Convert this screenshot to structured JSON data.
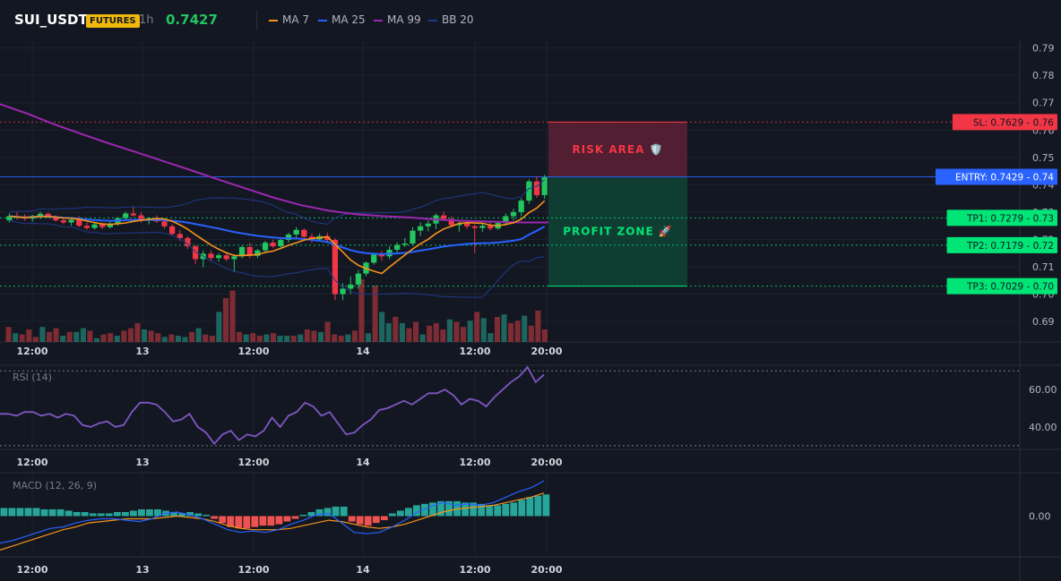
{
  "header": {
    "symbol": "SUI_USDT",
    "badge": "FUTURES",
    "timeframe": "1h",
    "last_price": "0.7427",
    "legend": [
      {
        "label": "MA 7",
        "color": "#f7931a"
      },
      {
        "label": "MA 25",
        "color": "#2962ff"
      },
      {
        "label": "MA 99",
        "color": "#9c27b0"
      },
      {
        "label": "BB 20",
        "color": "#1e3a8a"
      }
    ]
  },
  "chart_data": [
    {
      "type": "candlestick",
      "panel": "price",
      "x_ticks": [
        "12:00",
        "13",
        "12:00",
        "14",
        "12:00",
        "20:00"
      ],
      "y_ticks": [
        0.69,
        0.7,
        0.71,
        0.72,
        0.73,
        0.74,
        0.75,
        0.76,
        0.77,
        0.78,
        0.79
      ],
      "ylim": [
        0.6825,
        0.7925
      ],
      "candles": [
        [
          0.727,
          0.7295,
          0.7262,
          0.7285
        ],
        [
          0.7285,
          0.73,
          0.7272,
          0.728
        ],
        [
          0.728,
          0.7292,
          0.7268,
          0.7276
        ],
        [
          0.7276,
          0.729,
          0.7265,
          0.7286
        ],
        [
          0.7286,
          0.7302,
          0.7275,
          0.7294
        ],
        [
          0.7294,
          0.7298,
          0.7278,
          0.7282
        ],
        [
          0.7282,
          0.7288,
          0.7265,
          0.727
        ],
        [
          0.727,
          0.7282,
          0.7255,
          0.7262
        ],
        [
          0.7262,
          0.7278,
          0.725,
          0.7272
        ],
        [
          0.7272,
          0.7285,
          0.7245,
          0.725
        ],
        [
          0.725,
          0.7262,
          0.7235,
          0.7242
        ],
        [
          0.7242,
          0.726,
          0.7236,
          0.7255
        ],
        [
          0.7255,
          0.7262,
          0.7238,
          0.7245
        ],
        [
          0.7245,
          0.7265,
          0.724,
          0.7258
        ],
        [
          0.7258,
          0.7282,
          0.725,
          0.7278
        ],
        [
          0.7278,
          0.7302,
          0.727,
          0.7295
        ],
        [
          0.7295,
          0.7318,
          0.7282,
          0.7288
        ],
        [
          0.7288,
          0.73,
          0.7262,
          0.727
        ],
        [
          0.727,
          0.7282,
          0.7255,
          0.7278
        ],
        [
          0.7278,
          0.7288,
          0.726,
          0.7266
        ],
        [
          0.7266,
          0.7276,
          0.724,
          0.7248
        ],
        [
          0.7248,
          0.7255,
          0.7215,
          0.722
        ],
        [
          0.722,
          0.7235,
          0.7195,
          0.7205
        ],
        [
          0.7205,
          0.7212,
          0.7165,
          0.7175
        ],
        [
          0.7175,
          0.718,
          0.711,
          0.7128
        ],
        [
          0.7128,
          0.716,
          0.7098,
          0.7148
        ],
        [
          0.7148,
          0.716,
          0.712,
          0.7132
        ],
        [
          0.7132,
          0.715,
          0.7118,
          0.7142
        ],
        [
          0.7142,
          0.715,
          0.712,
          0.7128
        ],
        [
          0.7128,
          0.7145,
          0.708,
          0.7138
        ],
        [
          0.7138,
          0.7178,
          0.713,
          0.7172
        ],
        [
          0.7172,
          0.7188,
          0.7132,
          0.714
        ],
        [
          0.714,
          0.7165,
          0.7132,
          0.716
        ],
        [
          0.716,
          0.7195,
          0.7155,
          0.7188
        ],
        [
          0.7188,
          0.7198,
          0.7168,
          0.7175
        ],
        [
          0.7175,
          0.7202,
          0.717,
          0.7198
        ],
        [
          0.7198,
          0.7225,
          0.7188,
          0.7218
        ],
        [
          0.7218,
          0.7245,
          0.7205,
          0.7235
        ],
        [
          0.7235,
          0.724,
          0.72,
          0.721
        ],
        [
          0.721,
          0.7222,
          0.7188,
          0.72
        ],
        [
          0.72,
          0.7222,
          0.7195,
          0.7212
        ],
        [
          0.7212,
          0.7225,
          0.7188,
          0.7198
        ],
        [
          0.7198,
          0.7205,
          0.6978,
          0.7
        ],
        [
          0.7,
          0.704,
          0.6978,
          0.702
        ],
        [
          0.702,
          0.7065,
          0.7,
          0.7035
        ],
        [
          0.7035,
          0.7088,
          0.702,
          0.7075
        ],
        [
          0.7075,
          0.712,
          0.7065,
          0.7115
        ],
        [
          0.7115,
          0.7152,
          0.7108,
          0.7145
        ],
        [
          0.7145,
          0.7158,
          0.7122,
          0.7138
        ],
        [
          0.7138,
          0.7175,
          0.7128,
          0.7162
        ],
        [
          0.7162,
          0.719,
          0.715,
          0.718
        ],
        [
          0.718,
          0.7205,
          0.7172,
          0.7185
        ],
        [
          0.7185,
          0.7245,
          0.718,
          0.7232
        ],
        [
          0.7232,
          0.7262,
          0.7212,
          0.7248
        ],
        [
          0.7248,
          0.727,
          0.723,
          0.7258
        ],
        [
          0.7258,
          0.7295,
          0.7238,
          0.7288
        ],
        [
          0.7288,
          0.7302,
          0.7268,
          0.7275
        ],
        [
          0.7275,
          0.7285,
          0.7245,
          0.7252
        ],
        [
          0.7252,
          0.7265,
          0.7228,
          0.7258
        ],
        [
          0.7258,
          0.727,
          0.7238,
          0.7248
        ],
        [
          0.7248,
          0.7255,
          0.715,
          0.7242
        ],
        [
          0.7242,
          0.7258,
          0.7228,
          0.725
        ],
        [
          0.725,
          0.7262,
          0.7232,
          0.724
        ],
        [
          0.724,
          0.7265,
          0.7235,
          0.726
        ],
        [
          0.726,
          0.7295,
          0.725,
          0.7285
        ],
        [
          0.7285,
          0.7312,
          0.727,
          0.73
        ],
        [
          0.73,
          0.7352,
          0.7285,
          0.7342
        ],
        [
          0.7342,
          0.742,
          0.733,
          0.7412
        ],
        [
          0.7412,
          0.7432,
          0.7352,
          0.7362
        ],
        [
          0.7362,
          0.7436,
          0.7348,
          0.7427
        ]
      ],
      "volume": [
        24,
        14,
        12,
        20,
        8,
        24,
        16,
        22,
        10,
        16,
        16,
        22,
        18,
        6,
        12,
        14,
        10,
        18,
        22,
        30,
        20,
        18,
        14,
        8,
        12,
        10,
        8,
        16,
        22,
        12,
        10,
        48,
        70,
        82,
        16,
        12,
        14,
        10,
        12,
        14,
        10,
        10,
        10,
        12,
        20,
        18,
        16,
        32,
        12,
        10,
        12,
        18,
        100,
        14,
        90,
        48,
        30,
        40,
        30,
        22,
        32,
        12,
        26,
        30,
        20,
        36,
        32,
        24,
        34,
        48,
        38,
        14,
        40,
        44,
        30,
        34,
        42,
        26,
        50,
        20
      ],
      "overlays": [
        {
          "name": "MA 7",
          "color": "#f7931a"
        },
        {
          "name": "MA 25",
          "color": "#2962ff"
        },
        {
          "name": "MA 99",
          "color": "#9c27b0",
          "values": [
            0.7695,
            0.766,
            0.762,
            0.7585,
            0.755,
            0.7518,
            0.7485,
            0.7452,
            0.7418,
            0.7385,
            0.7352,
            0.7325,
            0.7305,
            0.7292,
            0.7285,
            0.728,
            0.7272,
            0.7268,
            0.7265,
            0.7262,
            0.7262
          ]
        },
        {
          "name": "BB 20",
          "color": "#1e3a8a"
        }
      ],
      "levels": [
        {
          "label": "SL: 0.7629",
          "value": 0.7629,
          "price_label": "0.76",
          "color": "#f23645"
        },
        {
          "label": "ENTRY: 0.7429",
          "value": 0.7429,
          "price_label": "0.74",
          "color": "#2962ff"
        },
        {
          "label": "TP1: 0.7279",
          "value": 0.7279,
          "price_label": "0.73",
          "color": "#00e676"
        },
        {
          "label": "TP2: 0.7179",
          "value": 0.7179,
          "price_label": "0.72",
          "color": "#00e676"
        },
        {
          "label": "TP3: 0.7029",
          "value": 0.7029,
          "price_label": "0.70",
          "color": "#00e676"
        }
      ],
      "zones": [
        {
          "label": "RISK AREA 🛡️",
          "from": 0.7429,
          "to": 0.7629,
          "color": "#f23645"
        },
        {
          "label": "PROFIT ZONE 🚀",
          "from": 0.7029,
          "to": 0.7429,
          "color": "#00e676"
        }
      ]
    },
    {
      "type": "line",
      "panel": "rsi",
      "title": "RSI (14)",
      "y_ticks": [
        40.0,
        60.0
      ],
      "ylim": [
        28,
        73
      ],
      "guides": [
        70,
        30
      ],
      "values": [
        47,
        47,
        46,
        48,
        48,
        46,
        47,
        45,
        47,
        46,
        41,
        40,
        42,
        43,
        40,
        41,
        48,
        53,
        53,
        52,
        48,
        43,
        44,
        47,
        40,
        37,
        31,
        36,
        38,
        33,
        36,
        35,
        38,
        45,
        40,
        46,
        48,
        53,
        51,
        46,
        48,
        42,
        36,
        37,
        41,
        44,
        49,
        50,
        52,
        54,
        52,
        55,
        58,
        58,
        60,
        57,
        52,
        55,
        54,
        51,
        56,
        60,
        64,
        67,
        72,
        64,
        68
      ],
      "color": "#7e57c2"
    },
    {
      "type": "bar",
      "panel": "macd",
      "title": "MACD (12, 26, 9)",
      "y_ticks": [
        0.0
      ],
      "ylim": [
        -0.003,
        0.0032
      ],
      "histogram": [
        0.0006,
        0.0006,
        0.0006,
        0.0006,
        0.0006,
        0.0005,
        0.0005,
        0.0005,
        0.0004,
        0.0003,
        0.0003,
        0.0002,
        0.0002,
        0.0002,
        0.0003,
        0.0003,
        0.0004,
        0.0005,
        0.0005,
        0.0005,
        0.0004,
        0.0003,
        0.0002,
        0.0003,
        0.0002,
        0.0001,
        -0.0002,
        -0.0005,
        -0.0008,
        -0.0009,
        -0.0009,
        -0.0008,
        -0.0007,
        -0.0007,
        -0.0006,
        -0.0004,
        -0.0002,
        0.0001,
        0.0003,
        0.0005,
        0.0006,
        0.0007,
        0.0007,
        -0.0004,
        -0.0006,
        -0.0007,
        -0.0005,
        -0.0003,
        0.0002,
        0.0004,
        0.0006,
        0.0008,
        0.0009,
        0.001,
        0.0011,
        0.0011,
        0.0011,
        0.001,
        0.001,
        0.0009,
        0.0008,
        0.0008,
        0.0009,
        0.001,
        0.0012,
        0.0014,
        0.0015,
        0.0016
      ],
      "macd_line": [
        -0.002,
        -0.0018,
        -0.0015,
        -0.0012,
        -0.0009,
        -0.0008,
        -0.0005,
        -0.0003,
        -0.0002,
        -0.0002,
        -0.0003,
        -0.0004,
        -0.0002,
        0.0002,
        0.0003,
        0.0001,
        -0.0002,
        -0.0006,
        -0.001,
        -0.0012,
        -0.0011,
        -0.0012,
        -0.001,
        -0.0006,
        -0.0003,
        0.0001,
        0.0002,
        -0.0005,
        -0.0012,
        -0.0013,
        -0.0012,
        -0.0008,
        -0.0003,
        0.0003,
        0.0007,
        0.001,
        0.0008,
        0.0009,
        0.0008,
        0.001,
        0.0014,
        0.0018,
        0.0021,
        0.0026
      ],
      "signal_line": [
        -0.0025,
        -0.0022,
        -0.0019,
        -0.0016,
        -0.0013,
        -0.001,
        -0.0008,
        -0.0005,
        -0.0004,
        -0.0003,
        -0.0002,
        -0.0002,
        -0.0002,
        -0.0001,
        0.0,
        -0.0001,
        -0.0002,
        -0.0004,
        -0.0007,
        -0.0009,
        -0.001,
        -0.001,
        -0.001,
        -0.0009,
        -0.0007,
        -0.0005,
        -0.0003,
        -0.0004,
        -0.0006,
        -0.0008,
        -0.0009,
        -0.0008,
        -0.0006,
        -0.0003,
        0.0,
        0.0003,
        0.0005,
        0.0006,
        0.0007,
        0.0008,
        0.001,
        0.0012,
        0.0014,
        0.0017
      ],
      "hist_up_color": "#26a69a",
      "hist_down_color": "#ef5350",
      "macd_color": "#2962ff",
      "signal_color": "#f7931a"
    }
  ]
}
